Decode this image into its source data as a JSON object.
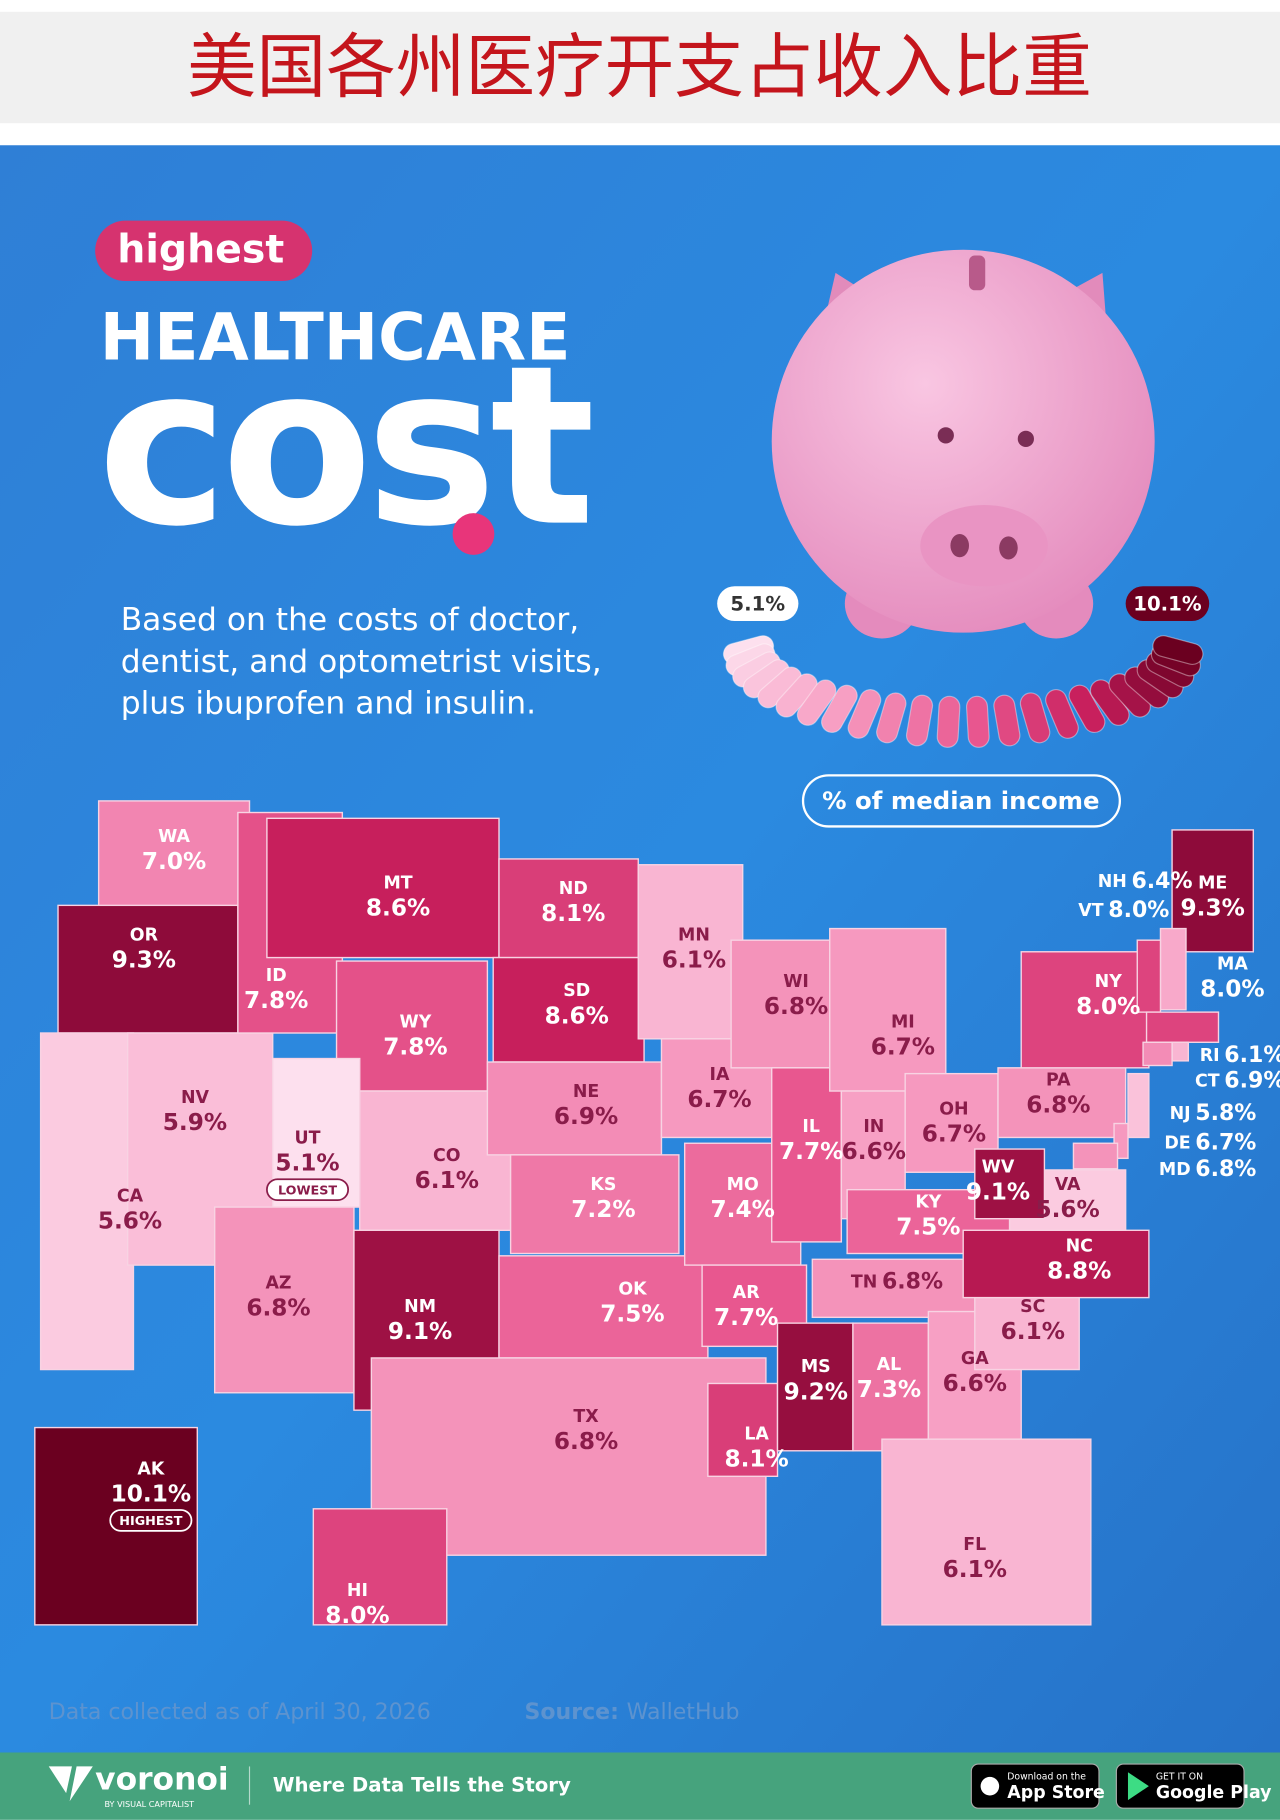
{
  "header": {
    "title": "美国各州医疗开支占收入比重"
  },
  "hero": {
    "tag": "highest",
    "title": "HEALTHCARE",
    "title_big": "cost",
    "description": [
      "Based on the costs of doctor,",
      "dentist, and optometrist visits,",
      "plus ibuprofen and insulin."
    ]
  },
  "legend": {
    "title": "% of median income",
    "min": 5.1,
    "min_label": "5.1%",
    "max": 10.1,
    "max_label": "10.1%"
  },
  "states": [
    {
      "code": "WA",
      "value": 7.0,
      "value_label": "7.0%"
    },
    {
      "code": "OR",
      "value": 9.3,
      "value_label": "9.3%"
    },
    {
      "code": "CA",
      "value": 5.6,
      "value_label": "5.6%"
    },
    {
      "code": "NV",
      "value": 5.9,
      "value_label": "5.9%"
    },
    {
      "code": "ID",
      "value": 7.8,
      "value_label": "7.8%"
    },
    {
      "code": "MT",
      "value": 8.6,
      "value_label": "8.6%"
    },
    {
      "code": "WY",
      "value": 7.8,
      "value_label": "7.8%"
    },
    {
      "code": "UT",
      "value": 5.1,
      "value_label": "5.1%",
      "badge": "LOWEST"
    },
    {
      "code": "CO",
      "value": 6.1,
      "value_label": "6.1%"
    },
    {
      "code": "AZ",
      "value": 6.8,
      "value_label": "6.8%"
    },
    {
      "code": "NM",
      "value": 9.1,
      "value_label": "9.1%"
    },
    {
      "code": "ND",
      "value": 8.1,
      "value_label": "8.1%"
    },
    {
      "code": "SD",
      "value": 8.6,
      "value_label": "8.6%"
    },
    {
      "code": "NE",
      "value": 6.9,
      "value_label": "6.9%"
    },
    {
      "code": "KS",
      "value": 7.2,
      "value_label": "7.2%"
    },
    {
      "code": "OK",
      "value": 7.5,
      "value_label": "7.5%"
    },
    {
      "code": "TX",
      "value": 6.8,
      "value_label": "6.8%"
    },
    {
      "code": "MN",
      "value": 6.1,
      "value_label": "6.1%"
    },
    {
      "code": "IA",
      "value": 6.7,
      "value_label": "6.7%"
    },
    {
      "code": "MO",
      "value": 7.4,
      "value_label": "7.4%"
    },
    {
      "code": "AR",
      "value": 7.7,
      "value_label": "7.7%"
    },
    {
      "code": "LA",
      "value": 8.1,
      "value_label": "8.1%"
    },
    {
      "code": "WI",
      "value": 6.8,
      "value_label": "6.8%"
    },
    {
      "code": "IL",
      "value": 7.7,
      "value_label": "7.7%"
    },
    {
      "code": "MS",
      "value": 9.2,
      "value_label": "9.2%"
    },
    {
      "code": "MI",
      "value": 6.7,
      "value_label": "6.7%"
    },
    {
      "code": "IN",
      "value": 6.6,
      "value_label": "6.6%"
    },
    {
      "code": "OH",
      "value": 6.7,
      "value_label": "6.7%"
    },
    {
      "code": "KY",
      "value": 7.5,
      "value_label": "7.5%"
    },
    {
      "code": "TN",
      "value": 6.8,
      "value_label": "6.8%"
    },
    {
      "code": "AL",
      "value": 7.3,
      "value_label": "7.3%"
    },
    {
      "code": "GA",
      "value": 6.6,
      "value_label": "6.6%"
    },
    {
      "code": "FL",
      "value": 6.1,
      "value_label": "6.1%"
    },
    {
      "code": "SC",
      "value": 6.1,
      "value_label": "6.1%"
    },
    {
      "code": "NC",
      "value": 8.8,
      "value_label": "8.8%"
    },
    {
      "code": "VA",
      "value": 5.6,
      "value_label": "5.6%"
    },
    {
      "code": "WV",
      "value": 9.1,
      "value_label": "9.1%"
    },
    {
      "code": "PA",
      "value": 6.8,
      "value_label": "6.8%"
    },
    {
      "code": "NY",
      "value": 8.0,
      "value_label": "8.0%"
    },
    {
      "code": "ME",
      "value": 9.3,
      "value_label": "9.3%"
    },
    {
      "code": "NH",
      "value": 6.4,
      "value_label": "6.4%"
    },
    {
      "code": "VT",
      "value": 8.0,
      "value_label": "8.0%"
    },
    {
      "code": "MA",
      "value": 8.0,
      "value_label": "8.0%"
    },
    {
      "code": "RI",
      "value": 6.1,
      "value_label": "6.1%"
    },
    {
      "code": "CT",
      "value": 6.9,
      "value_label": "6.9%"
    },
    {
      "code": "NJ",
      "value": 5.8,
      "value_label": "5.8%"
    },
    {
      "code": "DE",
      "value": 6.7,
      "value_label": "6.7%"
    },
    {
      "code": "MD",
      "value": 6.8,
      "value_label": "6.8%"
    },
    {
      "code": "AK",
      "value": 10.1,
      "value_label": "10.1%",
      "badge": "HIGHEST"
    },
    {
      "code": "HI",
      "value": 8.0,
      "value_label": "8.0%"
    }
  ],
  "footer": {
    "note": "Data collected as of April 30, 2026",
    "source_label": "Source:",
    "source": "WalletHub",
    "brand": "voronoi",
    "brand_sub": "BY VISUAL CAPITALIST",
    "tagline": "Where Data Tells the Story",
    "app_store": [
      "Download on the",
      "App Store"
    ],
    "google_play": [
      "GET IT ON",
      "Google Play"
    ]
  }
}
